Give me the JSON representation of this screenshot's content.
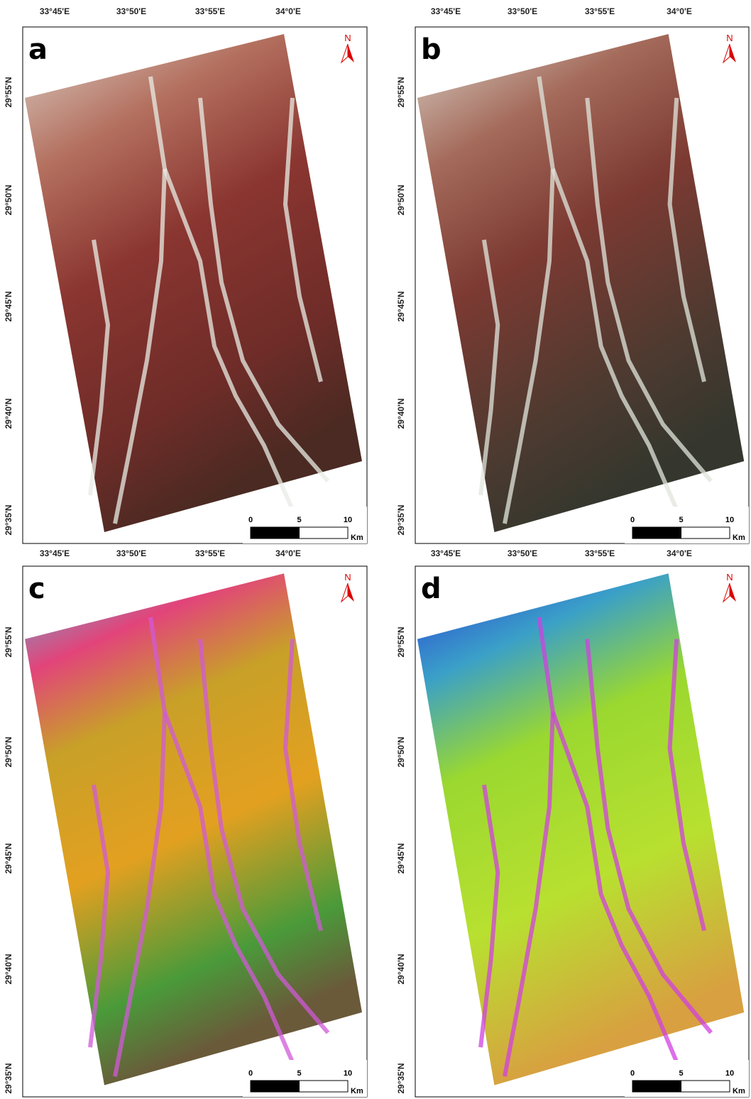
{
  "panels": [
    {
      "label": "a"
    },
    {
      "label": "b"
    },
    {
      "label": "c"
    },
    {
      "label": "d"
    }
  ],
  "lon_labels": [
    "33°45'E",
    "33°50'E",
    "33°55'E",
    "34°0'E"
  ],
  "lat_labels": [
    "29°55'N",
    "29°50'N",
    "29°45'N",
    "29°40'N",
    "29°35'N"
  ],
  "north": "N",
  "scale": {
    "labels": [
      "0",
      "5",
      "10"
    ],
    "unit": "Km"
  }
}
